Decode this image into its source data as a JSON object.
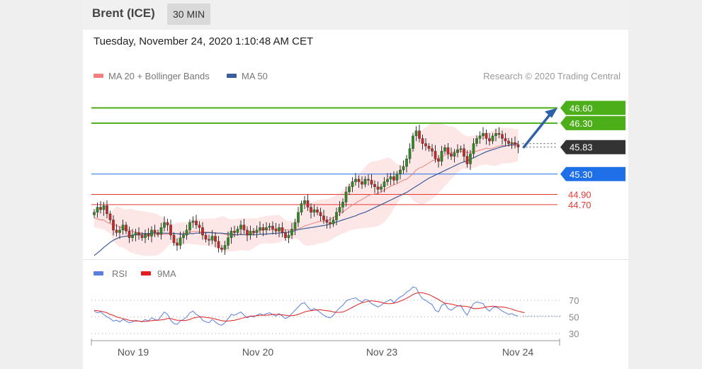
{
  "header": {
    "title": "Brent (ICE)",
    "interval": "30 MIN"
  },
  "datetime": "Tuesday, November 24, 2020 1:10:48 AM CET",
  "credit": "Research © 2020 Trading Central",
  "colors": {
    "ma20": "#f08080",
    "ma50": "#3a5d9c",
    "target": "#4caf1a",
    "pivot": "#1e6fe8",
    "support": "#e53935",
    "last": "#333333",
    "candle_up": "#2f8a22",
    "candle_down": "#c62828",
    "band": "#fde2e2",
    "arrow": "#2f61a8",
    "rsi": "#5b7fde",
    "rsi_ma": "#e02020"
  },
  "chart_data": [
    {
      "type": "candlestick",
      "title": "",
      "legend": [
        {
          "name": "MA 20 + Bollinger Bands",
          "color": "#f08080"
        },
        {
          "name": "MA 50",
          "color": "#3a5d9c"
        }
      ],
      "legend_placement": "top-left",
      "ylim": [
        43.6,
        47.05
      ],
      "x_ticks": [
        "Nov 19",
        "Nov 20",
        "Nov 23",
        "Nov 24"
      ],
      "levels": [
        {
          "value": 46.6,
          "label": "46.60",
          "kind": "target",
          "color": "#4caf1a",
          "style": "solid"
        },
        {
          "value": 46.3,
          "label": "46.30",
          "kind": "target",
          "color": "#4caf1a",
          "style": "solid"
        },
        {
          "value": 45.83,
          "label": "45.83",
          "kind": "last",
          "color": "#333333",
          "style": "dotted"
        },
        {
          "value": 45.3,
          "label": "45.30",
          "kind": "pivot",
          "color": "#1e6fe8",
          "style": "solid"
        },
        {
          "value": 44.9,
          "label": "44.90",
          "kind": "support",
          "color": "#e53935",
          "style": "solid"
        },
        {
          "value": 44.7,
          "label": "44.70",
          "kind": "support",
          "color": "#e53935",
          "style": "solid"
        }
      ],
      "close": [
        44.55,
        44.65,
        44.6,
        44.68,
        44.52,
        44.4,
        44.2,
        44.15,
        44.2,
        44.3,
        44.18,
        44.05,
        44.1,
        44.15,
        44.1,
        44.05,
        44.12,
        44.08,
        44.2,
        44.15,
        44.12,
        44.25,
        44.35,
        44.3,
        44.1,
        43.95,
        43.9,
        44.05,
        44.1,
        44.2,
        44.35,
        44.38,
        44.3,
        44.25,
        44.1,
        44.02,
        44.0,
        44.08,
        43.98,
        43.85,
        43.82,
        43.9,
        44.05,
        44.18,
        44.15,
        44.22,
        44.3,
        44.2,
        44.1,
        44.18,
        44.15,
        44.2,
        44.25,
        44.2,
        44.25,
        44.28,
        44.22,
        44.18,
        44.25,
        44.15,
        44.05,
        44.1,
        44.22,
        44.35,
        44.55,
        44.72,
        44.78,
        44.65,
        44.55,
        44.6,
        44.55,
        44.48,
        44.4,
        44.35,
        44.32,
        44.4,
        44.55,
        44.65,
        44.75,
        44.95,
        45.05,
        45.15,
        45.2,
        45.15,
        45.1,
        45.2,
        45.18,
        45.1,
        45.05,
        45.0,
        45.05,
        45.15,
        45.2,
        45.25,
        45.18,
        45.3,
        45.38,
        45.45,
        45.6,
        45.8,
        46.05,
        46.15,
        46.0,
        45.9,
        45.85,
        45.8,
        45.75,
        45.6,
        45.55,
        45.75,
        45.82,
        45.7,
        45.65,
        45.72,
        45.78,
        45.8,
        45.65,
        45.5,
        45.7,
        45.9,
        46.0,
        46.05,
        46.1,
        46.0,
        45.95,
        46.05,
        46.1,
        46.08,
        46.0,
        45.95,
        45.9,
        45.92,
        45.88,
        45.83
      ],
      "ma20": [
        44.44,
        44.42,
        44.4,
        44.4,
        44.35,
        44.33,
        44.3,
        44.29,
        44.26,
        44.24,
        44.21,
        44.2,
        44.18,
        44.16,
        44.15,
        44.14,
        44.13,
        44.12,
        44.12,
        44.11,
        44.11,
        44.11,
        44.12,
        44.12,
        44.13,
        44.13,
        44.13,
        44.13,
        44.13,
        44.15,
        44.16,
        44.17,
        44.17,
        44.17,
        44.16,
        44.16,
        44.16,
        44.15,
        44.15,
        44.14,
        44.13,
        44.12,
        44.1,
        44.1,
        44.1,
        44.11,
        44.12,
        44.11,
        44.11,
        44.12,
        44.14,
        44.16,
        44.19,
        44.2,
        44.21,
        44.21,
        44.21,
        44.22,
        44.23,
        44.22,
        44.21,
        44.2,
        44.2,
        44.21,
        44.23,
        44.25,
        44.28,
        44.3,
        44.32,
        44.34,
        44.36,
        44.37,
        44.38,
        44.39,
        44.41,
        44.45,
        44.48,
        44.51,
        44.56,
        44.6,
        44.65,
        44.69,
        44.73,
        44.77,
        44.8,
        44.84,
        44.88,
        44.9,
        44.91,
        44.92,
        44.95,
        44.98,
        45.03,
        45.06,
        45.09,
        45.11,
        45.15,
        45.18,
        45.2,
        45.25,
        45.31,
        45.38,
        45.42,
        45.44,
        45.48,
        45.52,
        45.56,
        45.58,
        45.61,
        45.64,
        45.67,
        45.69,
        45.72,
        45.74,
        45.75,
        45.75,
        45.74,
        45.72,
        45.73,
        45.74,
        45.75,
        45.77,
        45.79,
        45.81,
        45.8,
        45.81,
        45.83,
        45.85,
        45.86,
        45.86,
        45.86,
        45.86,
        45.86,
        45.87
      ],
      "ma50": [
        43.7,
        43.75,
        43.8,
        43.86,
        43.91,
        43.96,
        44.0,
        44.03,
        44.06,
        44.07,
        44.08,
        44.09,
        44.1,
        44.11,
        44.12,
        44.12,
        44.13,
        44.13,
        44.14,
        44.14,
        44.14,
        44.14,
        44.14,
        44.14,
        44.14,
        44.13,
        44.13,
        44.12,
        44.12,
        44.12,
        44.13,
        44.13,
        44.14,
        44.14,
        44.15,
        44.15,
        44.15,
        44.15,
        44.14,
        44.14,
        44.14,
        44.13,
        44.13,
        44.12,
        44.11,
        44.11,
        44.11,
        44.11,
        44.11,
        44.11,
        44.11,
        44.11,
        44.12,
        44.12,
        44.12,
        44.13,
        44.13,
        44.14,
        44.14,
        44.15,
        44.15,
        44.16,
        44.17,
        44.19,
        44.21,
        44.22,
        44.23,
        44.24,
        44.25,
        44.26,
        44.27,
        44.28,
        44.29,
        44.3,
        44.32,
        44.34,
        44.36,
        44.38,
        44.4,
        44.42,
        44.44,
        44.46,
        44.48,
        44.51,
        44.53,
        44.55,
        44.58,
        44.61,
        44.64,
        44.67,
        44.7,
        44.73,
        44.76,
        44.79,
        44.82,
        44.85,
        44.88,
        44.91,
        44.94,
        44.98,
        45.02,
        45.06,
        45.1,
        45.14,
        45.18,
        45.22,
        45.25,
        45.28,
        45.31,
        45.34,
        45.37,
        45.4,
        45.43,
        45.46,
        45.49,
        45.52,
        45.54,
        45.56,
        45.59,
        45.62,
        45.65,
        45.68,
        45.71,
        45.74,
        45.76,
        45.78,
        45.8,
        45.82,
        45.84,
        45.85,
        45.87,
        45.88,
        45.89,
        45.9
      ]
    },
    {
      "type": "line",
      "title": "",
      "legend": [
        {
          "name": "RSI",
          "color": "#5b7fde"
        },
        {
          "name": "9MA",
          "color": "#e02020"
        }
      ],
      "legend_placement": "top-left",
      "ylim": [
        24,
        93
      ],
      "yticks": [
        70,
        50,
        30
      ],
      "rsi": [
        57,
        55,
        56,
        53,
        50,
        48,
        45,
        46,
        44,
        47,
        45,
        43,
        44,
        46,
        45,
        44,
        47,
        45,
        49,
        47,
        46,
        51,
        56,
        53,
        46,
        42,
        41,
        45,
        47,
        50,
        55,
        57,
        53,
        51,
        46,
        44,
        43,
        47,
        44,
        41,
        40,
        43,
        48,
        53,
        52,
        54,
        56,
        52,
        49,
        51,
        50,
        52,
        54,
        52,
        54,
        55,
        53,
        51,
        54,
        51,
        48,
        50,
        54,
        58,
        62,
        66,
        67,
        62,
        58,
        60,
        58,
        55,
        52,
        50,
        49,
        52,
        57,
        61,
        64,
        69,
        71,
        72,
        73,
        70,
        68,
        71,
        70,
        66,
        64,
        62,
        64,
        67,
        69,
        71,
        67,
        71,
        74,
        76,
        80,
        82,
        86,
        85,
        77,
        72,
        70,
        67,
        65,
        58,
        56,
        64,
        66,
        60,
        58,
        61,
        63,
        64,
        57,
        52,
        60,
        66,
        68,
        67,
        66,
        60,
        57,
        61,
        62,
        60,
        57,
        55,
        53,
        54,
        52,
        51
      ],
      "ma9": [
        58,
        57.5,
        57,
        56,
        55,
        53,
        52,
        50,
        49,
        48,
        47,
        46,
        45.5,
        45,
        45,
        44.5,
        44.5,
        45,
        45.5,
        46,
        46,
        46.5,
        47,
        48,
        48,
        47,
        46,
        46,
        45.5,
        46,
        47,
        48.5,
        49.5,
        50,
        50,
        49.5,
        49,
        48.5,
        47.5,
        46.5,
        45.5,
        45,
        45,
        45.5,
        46,
        47,
        48,
        49,
        50,
        51,
        51,
        51.5,
        52,
        52,
        52,
        52.5,
        53,
        53,
        53,
        52.5,
        52,
        51.5,
        51.5,
        52,
        53,
        54.5,
        56,
        57,
        57.5,
        58,
        58.5,
        58.5,
        58,
        57.5,
        57,
        56,
        55.5,
        55.5,
        56,
        57.5,
        59.5,
        61.5,
        63.5,
        65.5,
        67,
        68,
        69,
        69.5,
        69,
        68.5,
        67.5,
        66.5,
        66,
        66,
        66.5,
        67.5,
        69,
        70.5,
        72.5,
        74.5,
        77,
        78.5,
        79,
        79,
        78,
        77,
        75,
        73,
        71,
        68.5,
        66.5,
        66,
        65.5,
        64.5,
        63.5,
        63,
        63,
        62.5,
        61.5,
        60,
        60,
        60.5,
        61,
        62,
        62.5,
        63,
        62.5,
        62,
        62,
        61.5,
        60.5,
        59.5,
        58,
        57,
        56,
        55
      ]
    }
  ]
}
